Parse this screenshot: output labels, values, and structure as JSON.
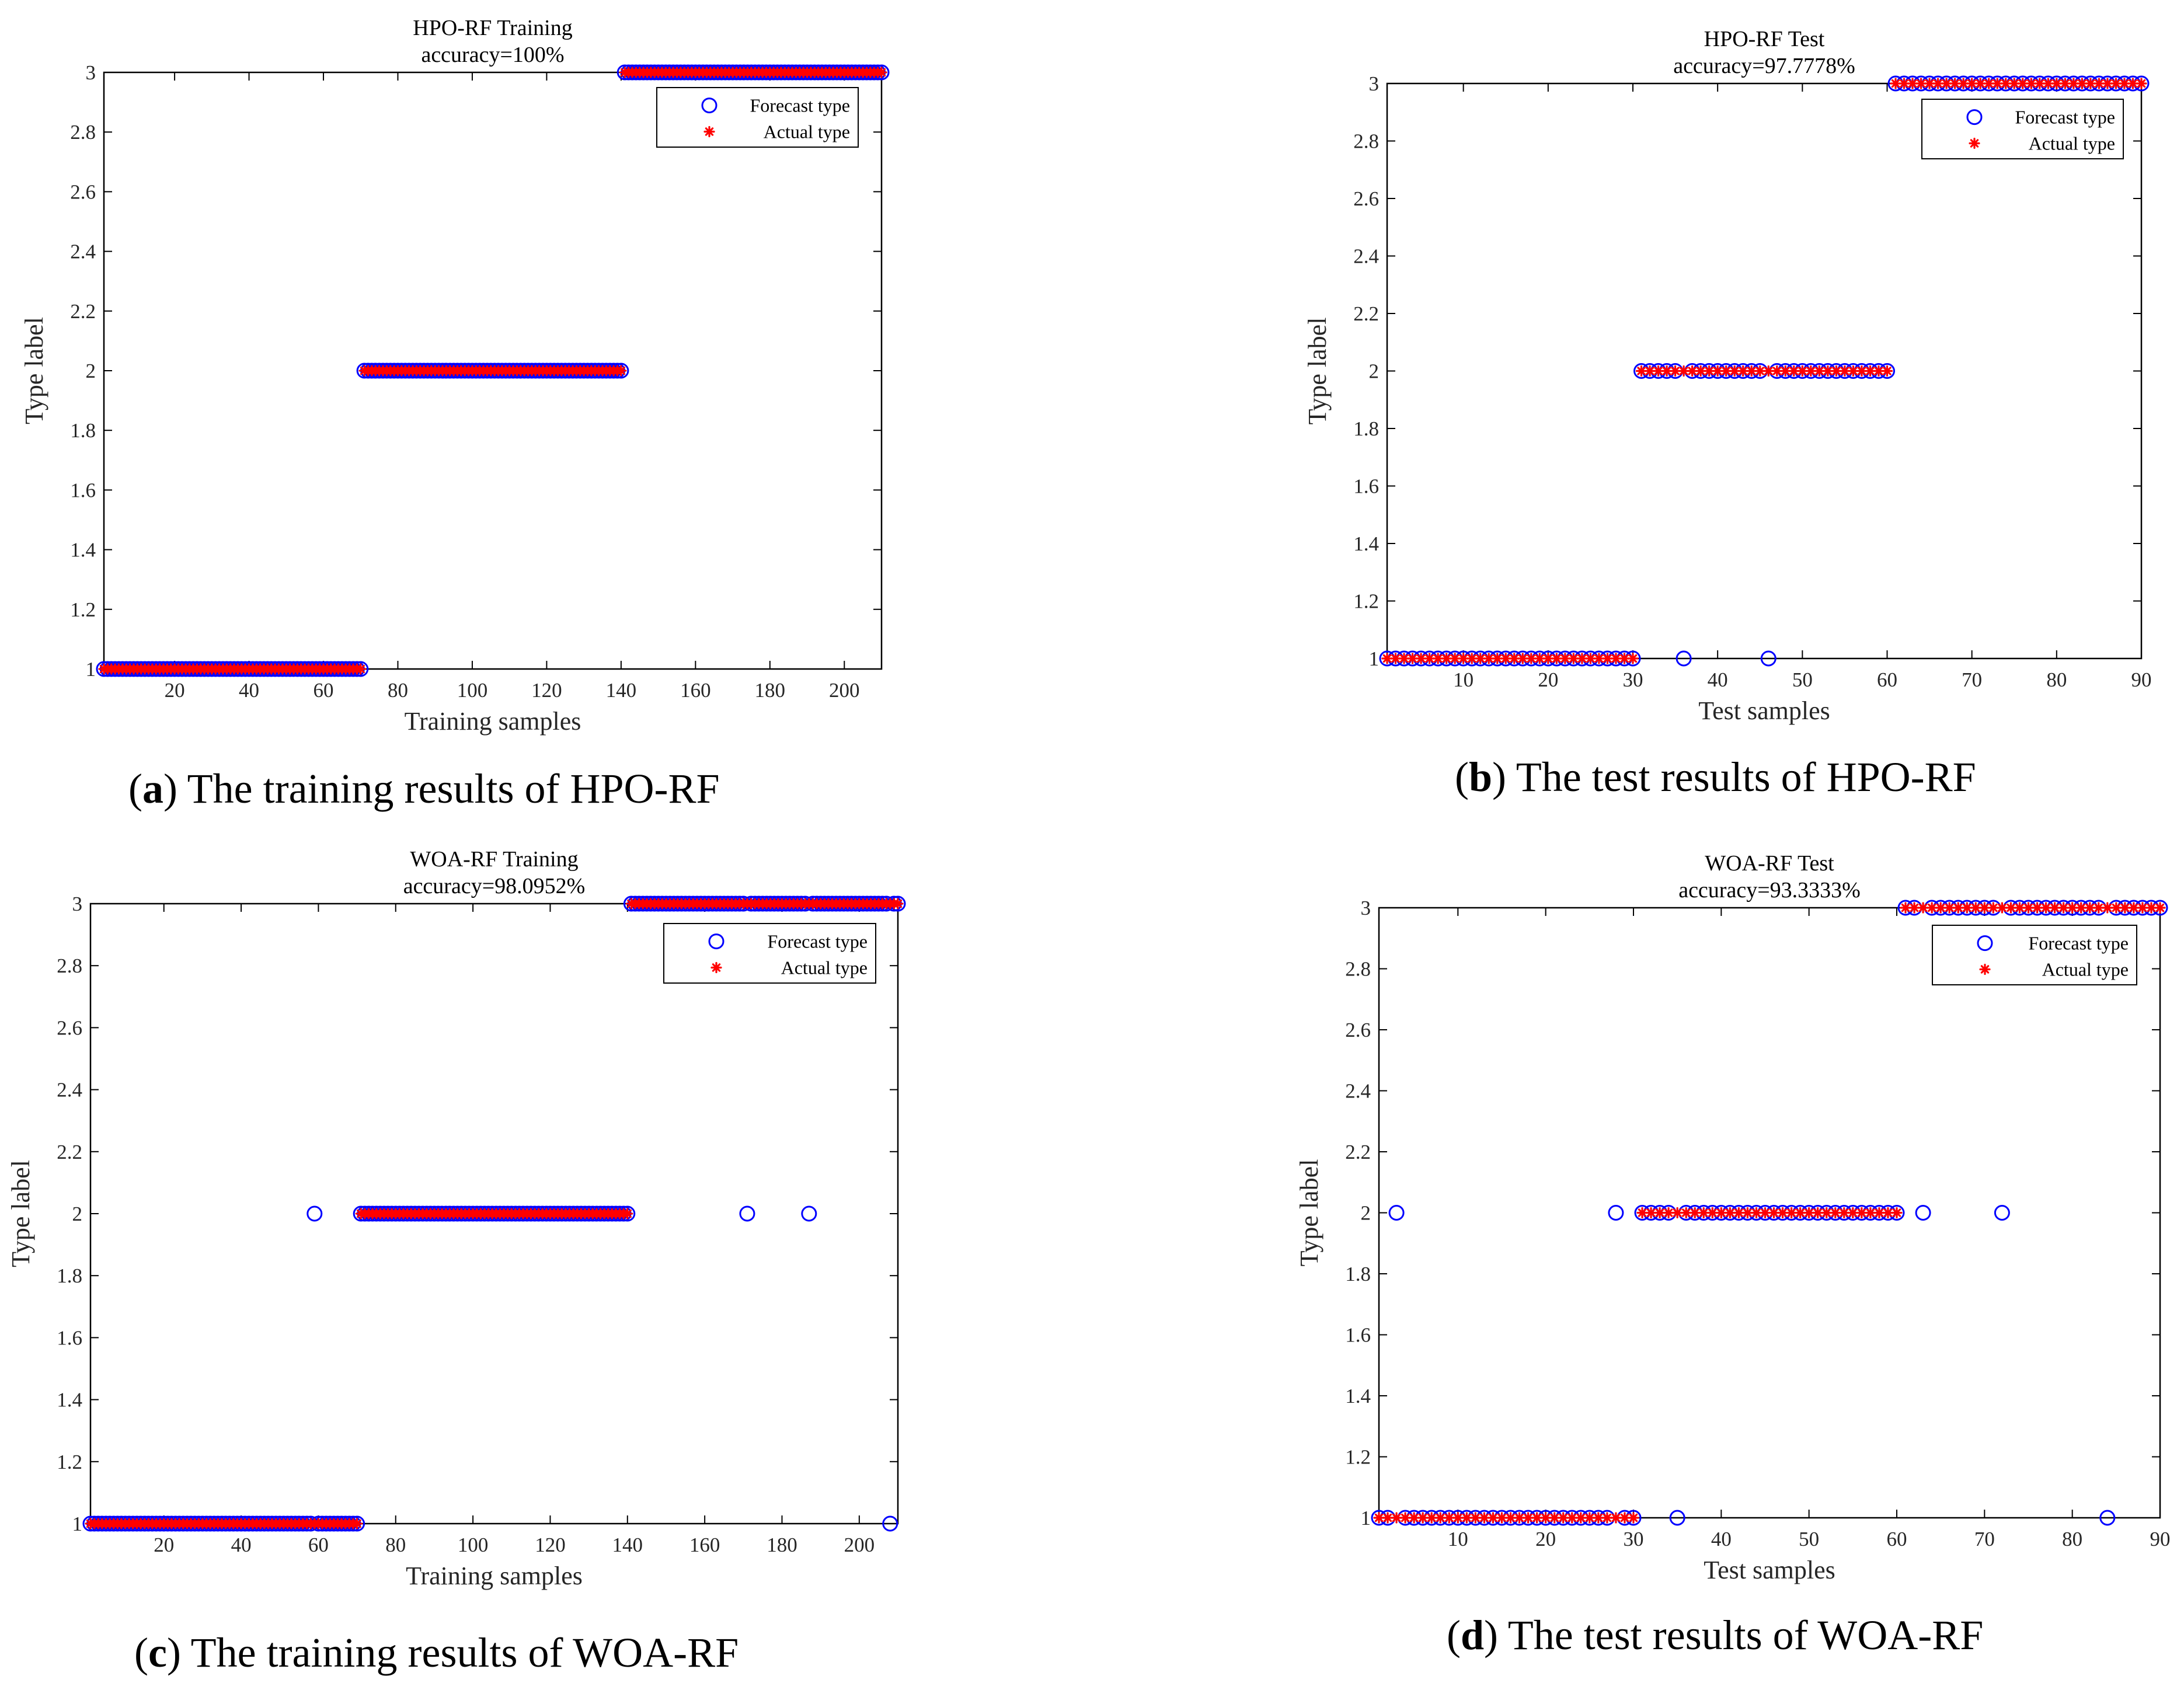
{
  "figure": {
    "colors": {
      "forecast": "#0000ff",
      "actual": "#ff0000",
      "axis": "#000000",
      "tick_text": "#262626"
    },
    "panels": [
      {
        "caption": {
          "letter": "a",
          "text": "The training results of HPO-RF"
        },
        "chart_data": {
          "type": "scatter",
          "title": [
            "HPO-RF Training",
            "accuracy=100%"
          ],
          "xlabel": "Training samples",
          "ylabel": "Type label",
          "xlim": [
            1,
            210
          ],
          "ylim": [
            1,
            3
          ],
          "xticks": [
            20,
            40,
            60,
            80,
            100,
            120,
            140,
            160,
            180,
            200
          ],
          "yticks": [
            1,
            1.2,
            1.4,
            1.6,
            1.8,
            2,
            2.2,
            2.4,
            2.6,
            2.8,
            3
          ],
          "legend": {
            "position": "top-right",
            "entries": [
              "Forecast type",
              "Actual type"
            ]
          },
          "series": [
            {
              "name": "Actual type",
              "marker": "asterisk",
              "segments": [
                {
                  "from": 1,
                  "to": 70,
                  "value": 1
                },
                {
                  "from": 71,
                  "to": 140,
                  "value": 2
                },
                {
                  "from": 141,
                  "to": 210,
                  "value": 3
                }
              ]
            },
            {
              "name": "Forecast type",
              "marker": "circle",
              "segments": [
                {
                  "from": 1,
                  "to": 70,
                  "value": 1
                },
                {
                  "from": 71,
                  "to": 140,
                  "value": 2
                },
                {
                  "from": 141,
                  "to": 210,
                  "value": 3
                }
              ],
              "misclassified": []
            }
          ]
        }
      },
      {
        "caption": {
          "letter": "b",
          "text": "The test results of HPO-RF"
        },
        "chart_data": {
          "type": "scatter",
          "title": [
            "HPO-RF Test",
            "accuracy=97.7778%"
          ],
          "xlabel": "Test samples",
          "ylabel": "Type label",
          "xlim": [
            1,
            90
          ],
          "ylim": [
            1,
            3
          ],
          "xticks": [
            10,
            20,
            30,
            40,
            50,
            60,
            70,
            80,
            90
          ],
          "yticks": [
            1,
            1.2,
            1.4,
            1.6,
            1.8,
            2,
            2.2,
            2.4,
            2.6,
            2.8,
            3
          ],
          "legend": {
            "position": "top-right",
            "entries": [
              "Forecast type",
              "Actual type"
            ]
          },
          "series": [
            {
              "name": "Actual type",
              "marker": "asterisk",
              "segments": [
                {
                  "from": 1,
                  "to": 30,
                  "value": 1
                },
                {
                  "from": 31,
                  "to": 60,
                  "value": 2
                },
                {
                  "from": 61,
                  "to": 90,
                  "value": 3
                }
              ]
            },
            {
              "name": "Forecast type",
              "marker": "circle",
              "segments": [
                {
                  "from": 1,
                  "to": 30,
                  "value": 1
                },
                {
                  "from": 31,
                  "to": 60,
                  "value": 2
                },
                {
                  "from": 61,
                  "to": 90,
                  "value": 3
                }
              ],
              "misclassified": [
                {
                  "x": 36,
                  "y": 1
                },
                {
                  "x": 46,
                  "y": 1
                }
              ]
            }
          ]
        }
      },
      {
        "caption": {
          "letter": "c",
          "text": "The training results of WOA-RF"
        },
        "chart_data": {
          "type": "scatter",
          "title": [
            "WOA-RF Training",
            "accuracy=98.0952%"
          ],
          "xlabel": "Training samples",
          "ylabel": "Type label",
          "xlim": [
            1,
            210
          ],
          "ylim": [
            1,
            3
          ],
          "xticks": [
            20,
            40,
            60,
            80,
            100,
            120,
            140,
            160,
            180,
            200
          ],
          "yticks": [
            1,
            1.2,
            1.4,
            1.6,
            1.8,
            2,
            2.2,
            2.4,
            2.6,
            2.8,
            3
          ],
          "legend": {
            "position": "top-right",
            "entries": [
              "Forecast type",
              "Actual type"
            ]
          },
          "series": [
            {
              "name": "Actual type",
              "marker": "asterisk",
              "segments": [
                {
                  "from": 1,
                  "to": 70,
                  "value": 1
                },
                {
                  "from": 71,
                  "to": 140,
                  "value": 2
                },
                {
                  "from": 141,
                  "to": 210,
                  "value": 3
                }
              ]
            },
            {
              "name": "Forecast type",
              "marker": "circle",
              "segments": [
                {
                  "from": 1,
                  "to": 70,
                  "value": 1
                },
                {
                  "from": 71,
                  "to": 140,
                  "value": 2
                },
                {
                  "from": 141,
                  "to": 210,
                  "value": 3
                }
              ],
              "misclassified": [
                {
                  "x": 59,
                  "y": 2
                },
                {
                  "x": 171,
                  "y": 2
                },
                {
                  "x": 187,
                  "y": 2
                },
                {
                  "x": 208,
                  "y": 1
                }
              ]
            }
          ]
        }
      },
      {
        "caption": {
          "letter": "d",
          "text": "The test results of WOA-RF"
        },
        "chart_data": {
          "type": "scatter",
          "title": [
            "WOA-RF Test",
            "accuracy=93.3333%"
          ],
          "xlabel": "Test samples",
          "ylabel": "Type label",
          "xlim": [
            1,
            90
          ],
          "ylim": [
            1,
            3
          ],
          "xticks": [
            10,
            20,
            30,
            40,
            50,
            60,
            70,
            80,
            90
          ],
          "yticks": [
            1,
            1.2,
            1.4,
            1.6,
            1.8,
            2,
            2.2,
            2.4,
            2.6,
            2.8,
            3
          ],
          "legend": {
            "position": "top-right",
            "entries": [
              "Forecast type",
              "Actual type"
            ]
          },
          "series": [
            {
              "name": "Actual type",
              "marker": "asterisk",
              "segments": [
                {
                  "from": 1,
                  "to": 30,
                  "value": 1
                },
                {
                  "from": 31,
                  "to": 60,
                  "value": 2
                },
                {
                  "from": 61,
                  "to": 90,
                  "value": 3
                }
              ]
            },
            {
              "name": "Forecast type",
              "marker": "circle",
              "segments": [
                {
                  "from": 1,
                  "to": 30,
                  "value": 1
                },
                {
                  "from": 31,
                  "to": 60,
                  "value": 2
                },
                {
                  "from": 61,
                  "to": 90,
                  "value": 3
                }
              ],
              "misclassified": [
                {
                  "x": 3,
                  "y": 2
                },
                {
                  "x": 28,
                  "y": 2
                },
                {
                  "x": 35,
                  "y": 1
                },
                {
                  "x": 63,
                  "y": 2
                },
                {
                  "x": 72,
                  "y": 2
                },
                {
                  "x": 84,
                  "y": 1
                }
              ]
            }
          ]
        }
      }
    ]
  }
}
